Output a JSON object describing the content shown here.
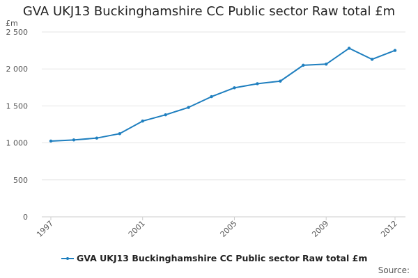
{
  "chart_data": {
    "type": "line",
    "title": "GVA UKJ13 Buckinghamshire CC Public sector Raw total £m",
    "ylabel": "£m",
    "xlabel": "",
    "x": [
      1997,
      1998,
      1999,
      2000,
      2001,
      2002,
      2003,
      2004,
      2005,
      2006,
      2007,
      2008,
      2009,
      2010,
      2011,
      2012
    ],
    "x_tick_labels": [
      "1997",
      "2001",
      "2005",
      "2009",
      "2012"
    ],
    "series": [
      {
        "name": "GVA UKJ13 Buckinghamshire CC Public sector Raw total £m",
        "values": [
          1025,
          1040,
          1065,
          1125,
          1295,
          1380,
          1480,
          1625,
          1745,
          1800,
          1835,
          2050,
          2065,
          2280,
          2130,
          2250
        ]
      }
    ],
    "ylim": [
      0,
      2500
    ],
    "y_ticks": [
      {
        "value": 0,
        "label": "0"
      },
      {
        "value": 500,
        "label": "500"
      },
      {
        "value": 1000,
        "label": "1 000"
      },
      {
        "value": 1500,
        "label": "1 500"
      },
      {
        "value": 2000,
        "label": "2 000"
      },
      {
        "value": 2500,
        "label": "2 500"
      }
    ],
    "grid": true,
    "legend_position": "bottom",
    "line_color": "#1f7fbf",
    "source_label": "Source:"
  }
}
